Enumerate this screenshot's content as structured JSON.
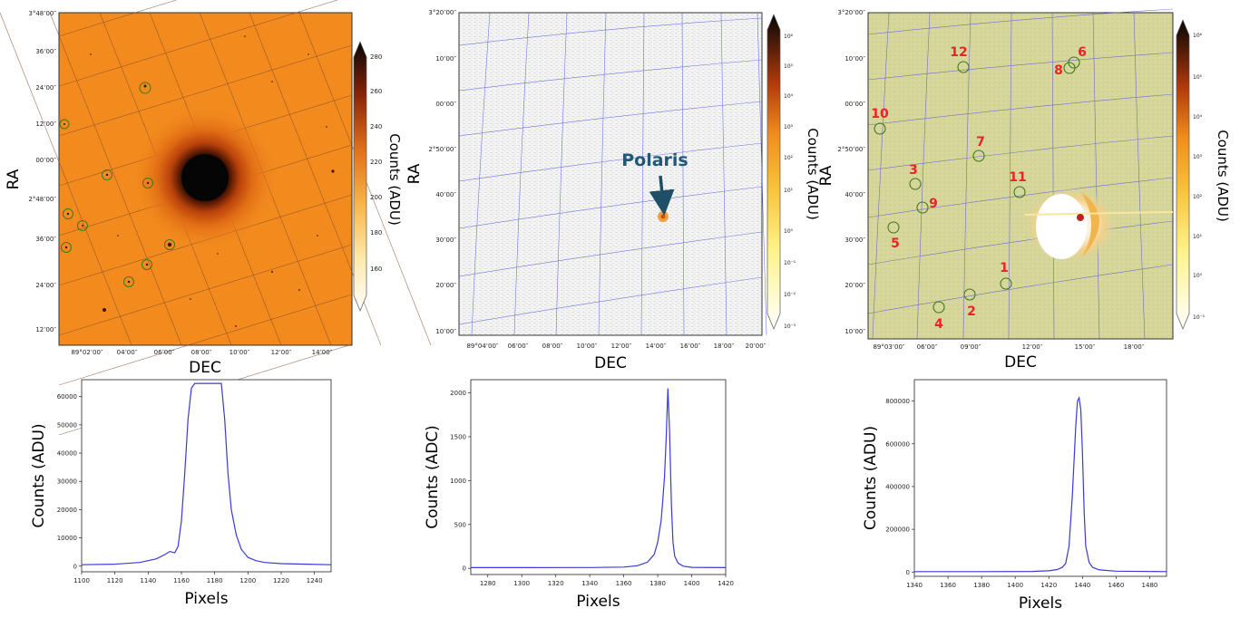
{
  "panels": [
    {
      "id": "a",
      "image": {
        "xlabel": "DEC",
        "ylabel": "RA",
        "colorbar_label": "Counts (ADU)",
        "colorbar_ticks": [
          "280",
          "260",
          "240",
          "220",
          "200",
          "180",
          "160"
        ],
        "ra_ticks": [
          "3°48’00″",
          "36’00″",
          "24’00″",
          "12’00″",
          "00’00″",
          "2°48’00″",
          "36’00″",
          "24’00″",
          "12’00″"
        ],
        "dec_ticks": [
          "89°02’00″",
          "04’00″",
          "06’00″",
          "08’00″",
          "10’00″",
          "12’00″",
          "14’00″"
        ],
        "colormap": "afmhot_r",
        "background_color": "#f28a1e"
      },
      "profile": {
        "xlabel": "Pixels",
        "ylabel": "Counts (ADU)",
        "x_ticks": [
          "1100",
          "1120",
          "1140",
          "1160",
          "1180",
          "1200",
          "1220",
          "1240"
        ],
        "y_ticks": [
          "0",
          "10000",
          "20000",
          "30000",
          "40000",
          "50000",
          "60000"
        ]
      }
    },
    {
      "id": "b",
      "image": {
        "xlabel": "DEC",
        "ylabel": "RA",
        "colorbar_label": "Counts (ADU)",
        "colorbar_ticks": [
          "10⁶",
          "10⁵",
          "10⁴",
          "10³",
          "10²",
          "10¹",
          "10⁰",
          "10⁻¹",
          "10⁻²",
          "10⁻³"
        ],
        "ra_ticks": [
          "3°20’00″",
          "10’00″",
          "00’00″",
          "2°50’00″",
          "40’00″",
          "30’00″",
          "20’00″",
          "10’00″"
        ],
        "dec_ticks": [
          "89°04’00″",
          "06’00″",
          "08’00″",
          "10’00″",
          "12’00″",
          "14’00″",
          "16’00″",
          "18’00″",
          "20’00″"
        ],
        "annotation": "Polaris",
        "colormap": "afmhot_r log",
        "background_color": "#f3f3f3"
      },
      "profile": {
        "xlabel": "Pixels",
        "ylabel": "Counts (ADC)",
        "x_ticks": [
          "1280",
          "1300",
          "1320",
          "1340",
          "1360",
          "1380",
          "1400",
          "1420"
        ],
        "y_ticks": [
          "0",
          "500",
          "1000",
          "1500",
          "2000"
        ]
      }
    },
    {
      "id": "c",
      "image": {
        "xlabel": "DEC",
        "ylabel": "RA",
        "colorbar_label": "Counts (ADU)",
        "colorbar_ticks": [
          "10⁶",
          "10⁵",
          "10⁴",
          "10³",
          "10²",
          "10¹",
          "10⁰",
          "10⁻¹"
        ],
        "ra_ticks": [
          "3°20’00″",
          "10’00″",
          "00’00″",
          "2°50’00″",
          "40’00″",
          "30’00″",
          "20’00″",
          "10’00″"
        ],
        "dec_ticks": [
          "89°03’00″",
          "06’00″",
          "09’00″",
          "12’00″",
          "15’00″",
          "18’00″"
        ],
        "star_labels": [
          "1",
          "2",
          "3",
          "4",
          "5",
          "6",
          "7",
          "8",
          "9",
          "10",
          "11",
          "12"
        ],
        "colormap": "afmhot_r log",
        "background_color": "#d9d79a"
      },
      "profile": {
        "xlabel": "Pixels",
        "ylabel": "Counts (ADU)",
        "x_ticks": [
          "1340",
          "1360",
          "1380",
          "1400",
          "1420",
          "1440",
          "1460",
          "1480"
        ],
        "y_ticks": [
          "0",
          "200000",
          "400000",
          "600000",
          "800000"
        ]
      }
    }
  ],
  "chart_data": [
    {
      "type": "line",
      "panel": "a-profile",
      "xlabel": "Pixels",
      "ylabel": "Counts (ADU)",
      "xlim": [
        1100,
        1250
      ],
      "ylim": [
        -2000,
        66000
      ],
      "series": [
        {
          "color": "#3a3ad6",
          "x": [
            1100,
            1120,
            1135,
            1145,
            1150,
            1153,
            1156,
            1158,
            1160,
            1162,
            1164,
            1166,
            1168,
            1170,
            1172,
            1175,
            1180,
            1184,
            1186,
            1188,
            1190,
            1193,
            1196,
            1200,
            1205,
            1210,
            1220,
            1235,
            1250
          ],
          "y": [
            500,
            700,
            1300,
            2600,
            4100,
            5200,
            4700,
            7000,
            16000,
            33000,
            52000,
            63000,
            64700,
            64700,
            64700,
            64700,
            64700,
            64700,
            52000,
            33000,
            20000,
            11000,
            6000,
            3100,
            1900,
            1300,
            900,
            700,
            500
          ]
        }
      ]
    },
    {
      "type": "line",
      "panel": "b-profile",
      "xlabel": "Pixels",
      "ylabel": "Counts (ADC)",
      "xlim": [
        1270,
        1420
      ],
      "ylim": [
        -70,
        2150
      ],
      "series": [
        {
          "color": "#3a3ad6",
          "x": [
            1270,
            1300,
            1340,
            1360,
            1368,
            1374,
            1378,
            1380,
            1382,
            1383,
            1384,
            1385,
            1386,
            1387,
            1388,
            1389,
            1390,
            1392,
            1395,
            1400,
            1420
          ],
          "y": [
            8,
            8,
            9,
            15,
            30,
            70,
            160,
            300,
            540,
            780,
            1050,
            1480,
            2050,
            1550,
            750,
            300,
            140,
            60,
            25,
            12,
            8
          ]
        }
      ]
    },
    {
      "type": "line",
      "panel": "c-profile",
      "xlabel": "Pixels",
      "ylabel": "Counts (ADU)",
      "xlim": [
        1340,
        1490
      ],
      "ylim": [
        -20000,
        900000
      ],
      "series": [
        {
          "color": "#3a3ad6",
          "x": [
            1340,
            1380,
            1410,
            1420,
            1425,
            1428,
            1430,
            1432,
            1434,
            1436,
            1437,
            1438,
            1439,
            1440,
            1441,
            1442,
            1444,
            1446,
            1450,
            1460,
            1490
          ],
          "y": [
            2000,
            2000,
            3000,
            6000,
            12000,
            22000,
            40000,
            120000,
            360000,
            680000,
            800000,
            815000,
            760000,
            560000,
            280000,
            120000,
            45000,
            22000,
            10000,
            4000,
            2000
          ]
        }
      ]
    }
  ]
}
